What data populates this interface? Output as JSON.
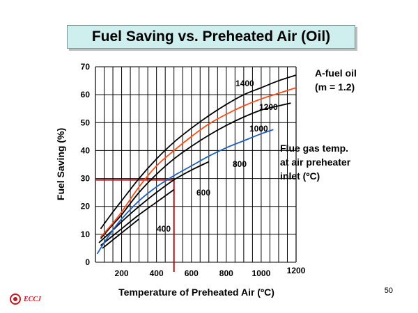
{
  "header": {
    "title": "Fuel Saving vs. Preheated Air (Oil)"
  },
  "chart_data": {
    "type": "line",
    "xlabel": "Temperature of Preheated Air (ºC)",
    "ylabel": "Fuel Saving (%)",
    "xlim": [
      50,
      1200
    ],
    "ylim": [
      0,
      70
    ],
    "xticks": [
      200,
      400,
      600,
      800,
      1000,
      1200
    ],
    "yticks": [
      0,
      10,
      20,
      30,
      40,
      50,
      60,
      70
    ],
    "grid": true,
    "series": [
      {
        "name": "400",
        "color": "#000000",
        "points": [
          [
            90,
            5
          ],
          [
            150,
            8
          ],
          [
            200,
            10.5
          ],
          [
            250,
            13
          ],
          [
            300,
            15.5
          ]
        ]
      },
      {
        "name": "600",
        "color": "#000000",
        "points": [
          [
            80,
            6
          ],
          [
            150,
            9.5
          ],
          [
            200,
            12
          ],
          [
            300,
            17
          ],
          [
            400,
            21.5
          ],
          [
            500,
            26
          ]
        ]
      },
      {
        "name": "800",
        "color": "#000000",
        "points": [
          [
            70,
            7
          ],
          [
            150,
            11.5
          ],
          [
            200,
            14.5
          ],
          [
            300,
            20
          ],
          [
            400,
            25
          ],
          [
            500,
            29.5
          ],
          [
            600,
            33
          ],
          [
            700,
            36
          ]
        ]
      },
      {
        "name": "1000",
        "color": "#1f5fbf",
        "points": [
          [
            60,
            3
          ],
          [
            100,
            7
          ],
          [
            150,
            11.5
          ],
          [
            200,
            15.5
          ],
          [
            300,
            22
          ],
          [
            400,
            27
          ],
          [
            500,
            31
          ],
          [
            600,
            34.5
          ],
          [
            700,
            38
          ],
          [
            800,
            41
          ],
          [
            900,
            43.5
          ],
          [
            1000,
            46
          ],
          [
            1070,
            47.5
          ]
        ]
      },
      {
        "name": "1200",
        "color": "#000000",
        "points": [
          [
            80,
            8.5
          ],
          [
            150,
            13.5
          ],
          [
            200,
            17
          ],
          [
            300,
            25
          ],
          [
            400,
            31.5
          ],
          [
            500,
            37
          ],
          [
            600,
            41.5
          ],
          [
            700,
            45.5
          ],
          [
            800,
            49
          ],
          [
            900,
            52
          ],
          [
            1000,
            54.5
          ],
          [
            1100,
            56
          ],
          [
            1170,
            57
          ]
        ]
      },
      {
        "name": "A-fuel oil",
        "color": "#ff4a10",
        "points": [
          [
            80,
            9
          ],
          [
            150,
            14
          ],
          [
            200,
            18
          ],
          [
            300,
            27
          ],
          [
            400,
            34.5
          ],
          [
            500,
            40
          ],
          [
            600,
            45
          ],
          [
            700,
            49.5
          ],
          [
            800,
            53
          ],
          [
            900,
            56
          ],
          [
            1000,
            58.5
          ],
          [
            1100,
            60.5
          ],
          [
            1200,
            62.5
          ]
        ]
      },
      {
        "name": "1400",
        "color": "#000000",
        "points": [
          [
            80,
            12
          ],
          [
            150,
            18
          ],
          [
            200,
            22
          ],
          [
            300,
            30
          ],
          [
            400,
            37
          ],
          [
            500,
            43
          ],
          [
            600,
            48
          ],
          [
            700,
            52.5
          ],
          [
            800,
            56.5
          ],
          [
            900,
            60
          ],
          [
            1000,
            62.5
          ],
          [
            1100,
            65
          ],
          [
            1200,
            67
          ]
        ]
      }
    ],
    "reference_point": {
      "x": 500,
      "y": 29.5,
      "color": "#aa1111"
    },
    "annotations": {
      "fuel": "A-fuel oil",
      "fuel_m": "(m = 1.2)",
      "flue_1": "Flue gas temp.",
      "flue_2": "at air preheater",
      "flue_3": "inlet (ºC)"
    }
  },
  "footer": {
    "page_number": "50",
    "logo_text": "ECCJ"
  }
}
